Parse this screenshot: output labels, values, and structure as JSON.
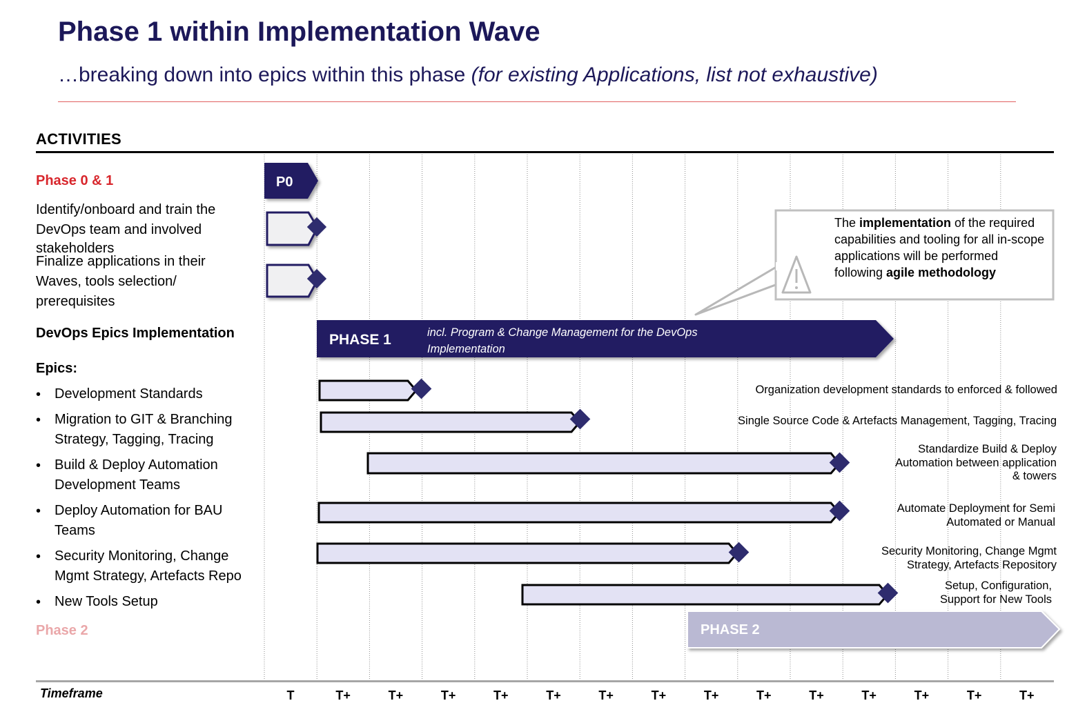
{
  "header": {
    "title": "Phase 1 within Implementation Wave",
    "subtitle_main": "…breaking down into epics within this phase ",
    "subtitle_italic": "(for existing Applications, list not exhaustive)"
  },
  "activities_heading": "ACTIVITIES",
  "phase01_label": "Phase 0 & 1",
  "p0_label": "P0",
  "rows": {
    "identify_lines": [
      "Identify/onboard and train the",
      "DevOps team and involved",
      "stakeholders"
    ],
    "finalize_lines": [
      "Finalize applications in their",
      "Waves, tools selection/",
      "prerequisites"
    ],
    "devops_epics": "DevOps Epics Implementation",
    "epics_heading": "Epics:"
  },
  "phase1": {
    "label": "PHASE 1",
    "note_lines": [
      "incl. Program & Change Management for the DevOps",
      "Implementation"
    ]
  },
  "callout": {
    "parts": [
      {
        "text": "The ",
        "bold": false
      },
      {
        "text": "implementation",
        "bold": true
      },
      {
        "text": " of the required capabilities and tooling for all in-scope applications will be performed following ",
        "bold": false
      },
      {
        "text": "agile methodology",
        "bold": true
      }
    ]
  },
  "bullet_glyph": "•",
  "epics": [
    {
      "lines": [
        "Development Standards"
      ],
      "desc": [
        "Organization development standards to enforced & followed"
      ]
    },
    {
      "lines": [
        "Migration to GIT & Branching",
        "Strategy, Tagging, Tracing"
      ],
      "desc": [
        "Single Source Code & Artefacts Management, Tagging, Tracing"
      ]
    },
    {
      "lines": [
        "Build & Deploy Automation",
        "Development Teams"
      ],
      "desc": [
        "Standardize Build & Deploy",
        "Automation between application",
        "& towers"
      ]
    },
    {
      "lines": [
        "Deploy Automation for BAU",
        "Teams"
      ],
      "desc": [
        "Automate Deployment for Semi",
        "Automated or Manual"
      ]
    },
    {
      "lines": [
        "Security Monitoring, Change",
        "Mgmt Strategy, Artefacts Repo"
      ],
      "desc": [
        "Security Monitoring, Change Mgmt",
        "Strategy, Artefacts Repository"
      ]
    },
    {
      "lines": [
        "New Tools Setup"
      ],
      "desc": [
        "Setup, Configuration,",
        "Support for New Tools"
      ]
    }
  ],
  "phase2": {
    "side_label": "Phase 2",
    "bar_label": "PHASE 2"
  },
  "timeframe_label": "Timeframe",
  "ticks": [
    "T",
    "T+",
    "T+",
    "T+",
    "T+",
    "T+",
    "T+",
    "T+",
    "T+",
    "T+",
    "T+",
    "T+",
    "T+",
    "T+",
    "T+"
  ],
  "colors": {
    "navy": "#221f62",
    "title_navy": "#1c1859",
    "phase01_red": "#d8262c",
    "phase2_pink": "#eaa7a9",
    "epic_bar_fill": "#e3e2f4",
    "phase2_fill": "#bab9d3",
    "diamond": "#2e2c6e"
  }
}
